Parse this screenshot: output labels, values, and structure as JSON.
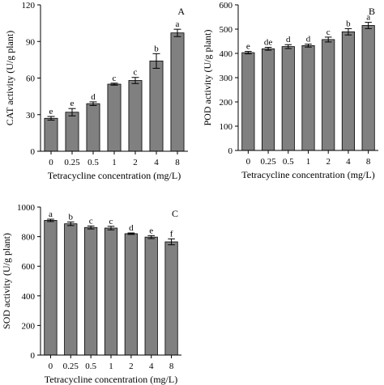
{
  "chart_data": [
    {
      "type": "bar",
      "panel_label": "A",
      "xlabel": "Tetracycline concentration (mg/L)",
      "ylabel": "CAT activity (U/g plant)",
      "ylim": [
        0,
        120
      ],
      "yticks": [
        0,
        30,
        60,
        90,
        120
      ],
      "categories": [
        "0",
        "0.25",
        "0.5",
        "1",
        "2",
        "4",
        "8"
      ],
      "values": [
        27,
        32,
        39,
        55,
        58,
        74,
        97
      ],
      "errors": [
        1.5,
        3,
        1.5,
        0.8,
        2.5,
        6,
        3
      ],
      "letters": [
        "e",
        "e",
        "d",
        "c",
        "c",
        "b",
        "a"
      ],
      "grid": false
    },
    {
      "type": "bar",
      "panel_label": "B",
      "xlabel": "Tetracycline concentration (mg/L)",
      "ylabel": "POD activity (U/g plant)",
      "ylim": [
        0,
        600
      ],
      "yticks": [
        0,
        100,
        200,
        300,
        400,
        500,
        600
      ],
      "categories": [
        "0",
        "0.25",
        "0.5",
        "1",
        "2",
        "4",
        "8"
      ],
      "values": [
        403,
        419,
        428,
        432,
        457,
        489,
        515
      ],
      "errors": [
        5,
        6,
        8,
        6,
        10,
        13,
        13
      ],
      "letters": [
        "e",
        "de",
        "d",
        "d",
        "c",
        "b",
        "a"
      ],
      "grid": false
    },
    {
      "type": "bar",
      "panel_label": "C",
      "xlabel": "Tetracycline concentration (mg/L)",
      "ylabel": "SOD activity (U/g plant)",
      "ylim": [
        0,
        1000
      ],
      "yticks": [
        0,
        200,
        400,
        600,
        800,
        1000
      ],
      "categories": [
        "0",
        "0.25",
        "0.5",
        "1",
        "2",
        "4",
        "8"
      ],
      "values": [
        910,
        887,
        862,
        858,
        820,
        797,
        765
      ],
      "errors": [
        8,
        12,
        10,
        12,
        5,
        10,
        20
      ],
      "letters": [
        "a",
        "b",
        "c",
        "c",
        "d",
        "e",
        "f"
      ],
      "grid": false
    }
  ]
}
